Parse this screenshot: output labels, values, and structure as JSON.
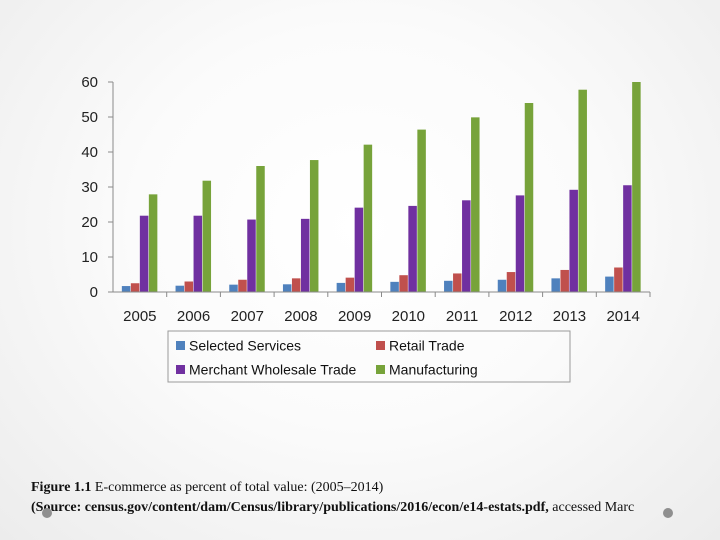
{
  "colors": {
    "selected_services": "#4f81bd",
    "retail_trade": "#c0504d",
    "merchant_wholesale_trade": "#7030a0",
    "manufacturing": "#77a33a",
    "axis": "#8a8a8a"
  },
  "chart_data": {
    "type": "bar",
    "title": "",
    "xlabel": "",
    "ylabel": "",
    "ylim": [
      0,
      60
    ],
    "yticks": [
      0,
      10,
      20,
      30,
      40,
      50,
      60
    ],
    "grid": false,
    "legend_position": "bottom",
    "categories": [
      "2005",
      "2006",
      "2007",
      "2008",
      "2009",
      "2010",
      "2011",
      "2012",
      "2013",
      "2014"
    ],
    "series": [
      {
        "name": "Selected Services",
        "color": "#4f81bd",
        "values": [
          1.7,
          1.8,
          2.1,
          2.2,
          2.6,
          2.9,
          3.2,
          3.5,
          3.9,
          4.4
        ]
      },
      {
        "name": "Retail Trade",
        "color": "#c0504d",
        "values": [
          2.5,
          3.0,
          3.5,
          3.9,
          4.1,
          4.8,
          5.3,
          5.7,
          6.3,
          7.0
        ]
      },
      {
        "name": "Merchant Wholesale Trade",
        "color": "#7030a0",
        "values": [
          21.8,
          21.8,
          20.7,
          20.9,
          24.1,
          24.6,
          26.2,
          27.6,
          29.2,
          30.5
        ]
      },
      {
        "name": "Manufacturing",
        "color": "#77a33a",
        "values": [
          27.9,
          31.8,
          36.0,
          37.7,
          42.1,
          46.4,
          49.9,
          54.0,
          57.8,
          60.0
        ]
      }
    ]
  },
  "caption": {
    "figure_label": "Figure 1.1",
    "figure_text": " E-commerce as percent of total value: (2005–2014)",
    "source_label": "(Source: census.gov/content/dam/Census/library/publications/2016/econ/e14-estats.pdf,",
    "source_text": " accessed Marc"
  }
}
